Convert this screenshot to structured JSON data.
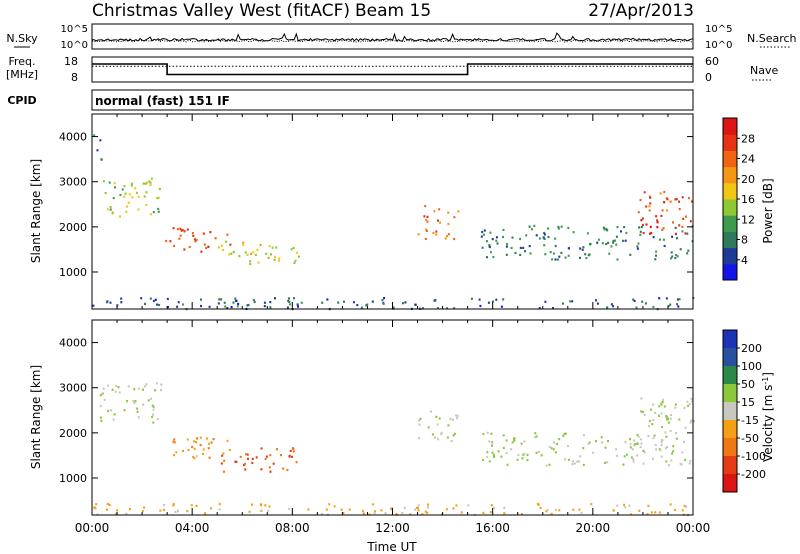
{
  "title": {
    "station": "Christmas Valley West (fitACF)",
    "beam": "Beam 15",
    "date": "27/Apr/2013"
  },
  "colors": {
    "power": [
      "#1414e8",
      "#1e3c96",
      "#2e7a5a",
      "#3e9b4e",
      "#8ec832",
      "#f0c814",
      "#f59614",
      "#f06414",
      "#e63214",
      "#dc1414"
    ],
    "velocity": [
      "#1e32b4",
      "#2850a0",
      "#2d8746",
      "#8cc83c",
      "#c8c8be",
      "#f5a014",
      "#f07814",
      "#e63c14",
      "#dc1414"
    ]
  },
  "strip_panels": {
    "nsky": {
      "label": "N.Sky",
      "right_label": "N.Search",
      "left_ticks": [
        "10^5",
        "10^0"
      ],
      "right_ticks": [
        "10^5",
        "10^0"
      ]
    },
    "freq": {
      "label_line1": "Freq.",
      "label_line2": "[MHz]",
      "right_label": "Nave",
      "left_ticks": [
        "18",
        "8"
      ],
      "right_ticks": [
        "60",
        "0"
      ],
      "frequency_mhz": [
        {
          "start_h": 0.0,
          "end_h": 3.0,
          "value": 15.2
        },
        {
          "start_h": 3.0,
          "end_h": 15.0,
          "value": 11.0
        },
        {
          "start_h": 15.0,
          "end_h": 24.0,
          "value": 15.2
        }
      ],
      "nave_baseline": 38
    },
    "cpid": {
      "label": "CPID",
      "text": "normal (fast) 151 IF"
    }
  },
  "chart_data": [
    {
      "type": "heatmap",
      "name": "power",
      "ylabel": "Slant Range [km]",
      "xlabel": "",
      "xlim_hours": [
        0,
        24
      ],
      "ylim_km": [
        180,
        4500
      ],
      "yticks": [
        1000,
        2000,
        3000,
        4000
      ],
      "colorbar": {
        "label": "Power [dB]",
        "ticks": [
          "4",
          "8",
          "12",
          "16",
          "20",
          "24",
          "28"
        ],
        "range": [
          0,
          30
        ]
      },
      "echo_regions": [
        {
          "t0": 0.0,
          "t1": 0.4,
          "r0": 3500,
          "r1": 4100,
          "level": 8
        },
        {
          "t0": 0.3,
          "t1": 2.8,
          "r0": 2250,
          "r1": 3150,
          "level": 14
        },
        {
          "t0": 2.9,
          "t1": 5.5,
          "r0": 1450,
          "r1": 2000,
          "level": 24
        },
        {
          "t0": 5.0,
          "t1": 8.3,
          "r0": 1150,
          "r1": 1700,
          "level": 16
        },
        {
          "t0": 13.0,
          "t1": 14.6,
          "r0": 1750,
          "r1": 2500,
          "level": 22
        },
        {
          "t0": 15.5,
          "t1": 24.0,
          "r0": 1300,
          "r1": 2050,
          "level": 8
        },
        {
          "t0": 21.5,
          "t1": 24.0,
          "r0": 1850,
          "r1": 2800,
          "level": 24
        },
        {
          "t0": 0.0,
          "t1": 24.0,
          "r0": 200,
          "r1": 450,
          "level": 6
        }
      ]
    },
    {
      "type": "heatmap",
      "name": "velocity",
      "ylabel": "Slant Range [km]",
      "xlabel": "Time UT",
      "xlim_hours": [
        0,
        24
      ],
      "ylim_km": [
        180,
        4500
      ],
      "yticks": [
        1000,
        2000,
        3000,
        4000
      ],
      "xticks": [
        "00:00",
        "04:00",
        "08:00",
        "12:00",
        "16:00",
        "20:00",
        "00:00"
      ],
      "colorbar": {
        "label": "Velocity [m s^-1]",
        "ticks": [
          "200",
          "100",
          "50",
          "15",
          "-15",
          "-50",
          "-100",
          "-200"
        ],
        "range": [
          -250,
          250
        ]
      },
      "echo_regions": [
        {
          "t0": 0.3,
          "t1": 2.8,
          "r0": 2250,
          "r1": 3150,
          "vel": 0
        },
        {
          "t0": 2.9,
          "t1": 5.5,
          "r0": 1450,
          "r1": 2000,
          "vel": -60
        },
        {
          "t0": 5.0,
          "t1": 8.3,
          "r0": 1150,
          "r1": 1700,
          "vel": -150
        },
        {
          "t0": 13.0,
          "t1": 14.6,
          "r0": 1750,
          "r1": 2500,
          "vel": 0
        },
        {
          "t0": 15.5,
          "t1": 24.0,
          "r0": 1300,
          "r1": 2050,
          "vel": 0
        },
        {
          "t0": 21.5,
          "t1": 24.0,
          "r0": 1850,
          "r1": 2800,
          "vel": 0
        },
        {
          "t0": 0.0,
          "t1": 24.0,
          "r0": 200,
          "r1": 450,
          "vel": -40
        }
      ]
    }
  ]
}
